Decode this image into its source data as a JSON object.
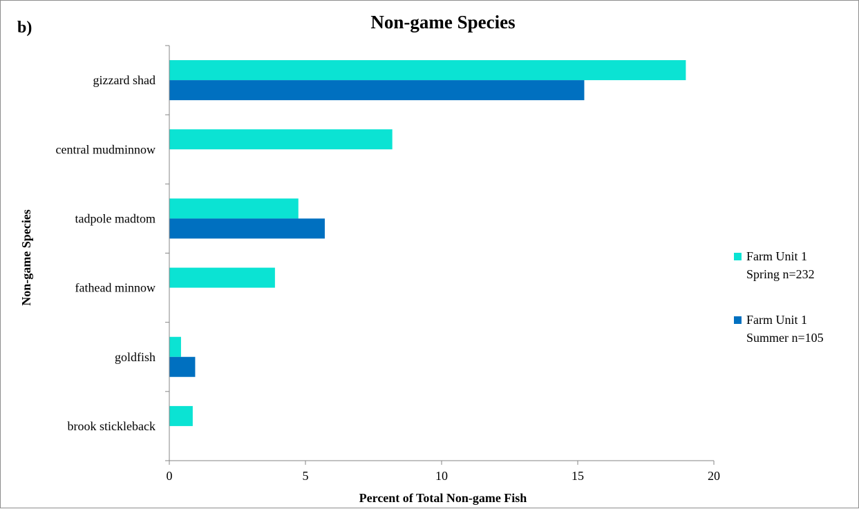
{
  "panel_label": "b)",
  "chart_data": {
    "type": "bar",
    "orientation": "horizontal",
    "title": "Non-game Species",
    "xlabel": "Percent of Total Non-game Fish",
    "ylabel": "Non-game Species",
    "categories": [
      "gizzard shad",
      "central mudminnow",
      "tadpole madtom",
      "fathead minnow",
      "goldfish",
      "brook stickleback"
    ],
    "series": [
      {
        "name_lines": [
          "Farm Unit 1",
          "Spring n=232"
        ],
        "color": "#0be3d3",
        "values": [
          18.97,
          8.19,
          4.74,
          3.88,
          0.43,
          0.86
        ]
      },
      {
        "name_lines": [
          "Farm Unit 1",
          "Summer n=105"
        ],
        "color": "#0070c0",
        "values": [
          15.24,
          0,
          5.71,
          0,
          0.95,
          0
        ]
      }
    ],
    "xlim": [
      0,
      20
    ],
    "xticks": [
      "0",
      "5",
      "10",
      "15",
      "20"
    ],
    "grid": false,
    "legend_position": "right"
  }
}
